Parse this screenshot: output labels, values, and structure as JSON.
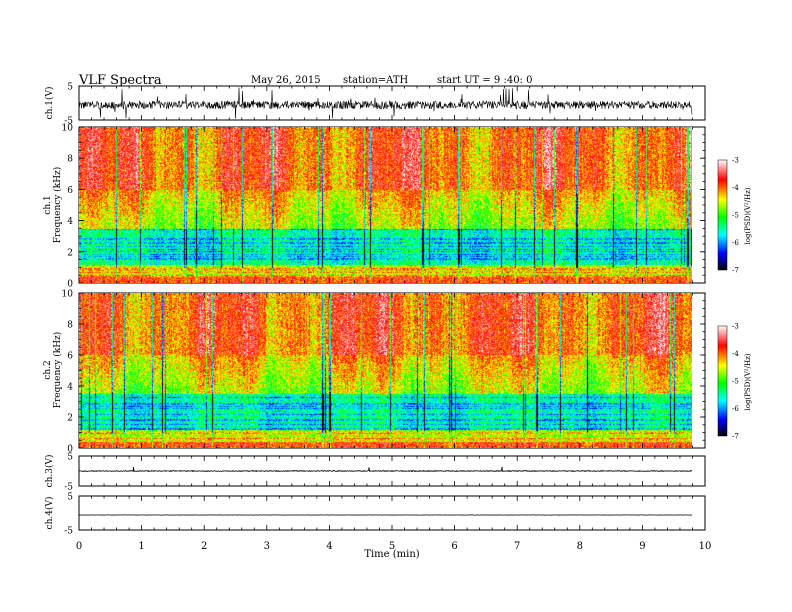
{
  "header": {
    "title": "VLF Spectra",
    "date": "May 26, 2015",
    "station": "station=ATH",
    "start": "start UT = 9 :40: 0"
  },
  "chart_data": {
    "type": "heatmap",
    "xlabel": "Time (min)",
    "xlim": [
      0,
      10
    ],
    "xticks": [
      "0",
      "1",
      "2",
      "3",
      "4",
      "5",
      "6",
      "7",
      "8",
      "9",
      "10"
    ],
    "data_end_min": 9.8,
    "panels": [
      {
        "id": "ch1-waveform",
        "type": "line",
        "ylabel": "ch.1(V)",
        "ylim": [
          -5,
          5
        ],
        "yticks": [
          "5",
          "-5"
        ]
      },
      {
        "id": "ch1-spectrogram",
        "type": "heatmap",
        "ylabel_top": "ch.1",
        "ylabel": "Frequency (kHz)",
        "ylim": [
          0,
          10
        ],
        "yticks": [
          "0",
          "2",
          "4",
          "6",
          "8",
          "10"
        ]
      },
      {
        "id": "ch2-spectrogram",
        "type": "heatmap",
        "ylabel_top": "ch.2",
        "ylabel": "Frequency (kHz)",
        "ylim": [
          0,
          10
        ],
        "yticks": [
          "0",
          "2",
          "4",
          "6",
          "8",
          "10"
        ]
      },
      {
        "id": "ch3-waveform",
        "type": "line",
        "ylabel": "ch.3(V)",
        "ylim": [
          -5,
          5
        ],
        "yticks": [
          "5",
          "-5"
        ]
      },
      {
        "id": "ch4-waveform",
        "type": "line",
        "ylabel": "ch.4(V)",
        "ylim": [
          -5,
          5
        ],
        "yticks": [
          "5",
          "-5"
        ]
      }
    ],
    "colorbar": {
      "label": "log(PSD)(V²/Hz)",
      "range": [
        -7,
        -3
      ],
      "ticks": [
        "-3",
        "-4",
        "-5",
        "-6",
        "-7"
      ],
      "colors": [
        "#ffffff",
        "#ff0000",
        "#ffff00",
        "#00ff00",
        "#00ffff",
        "#0000ff",
        "#000000"
      ]
    }
  }
}
